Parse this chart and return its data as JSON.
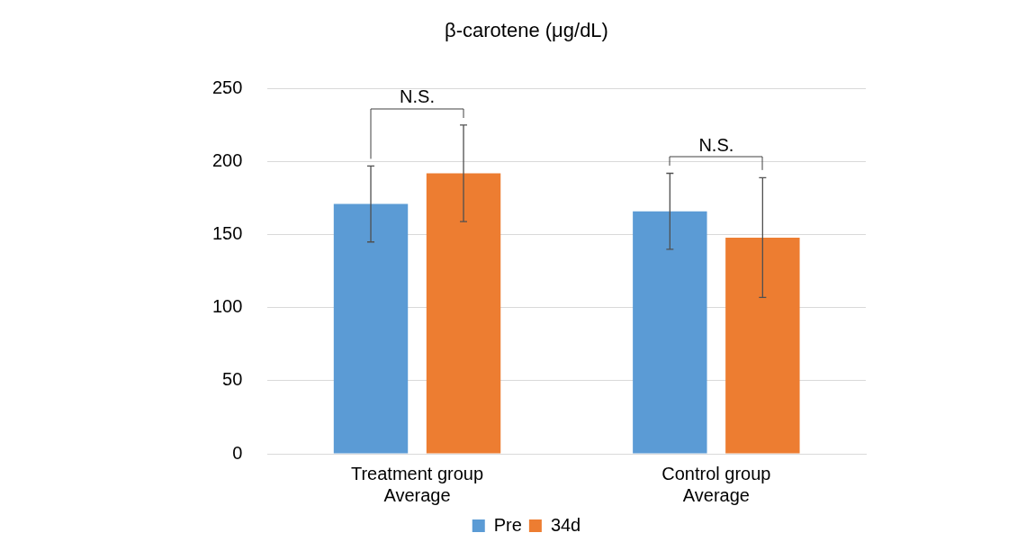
{
  "chart_data": {
    "type": "bar",
    "title": "β-carotene (μg/dL)",
    "categories": [
      "Treatment group\nAverage",
      "Control group\nAverage"
    ],
    "series": [
      {
        "name": "Pre",
        "color": "#5b9bd5",
        "values": [
          171,
          166
        ],
        "errors": [
          26,
          26
        ]
      },
      {
        "name": "34d",
        "color": "#ed7d31",
        "values": [
          192,
          148
        ],
        "errors": [
          33,
          41
        ]
      }
    ],
    "ylim": [
      0,
      250
    ],
    "yticks": [
      0,
      50,
      100,
      150,
      200,
      250
    ],
    "grid": "y",
    "legend": "bottom",
    "annotations": [
      "N.S.",
      "N.S."
    ]
  }
}
